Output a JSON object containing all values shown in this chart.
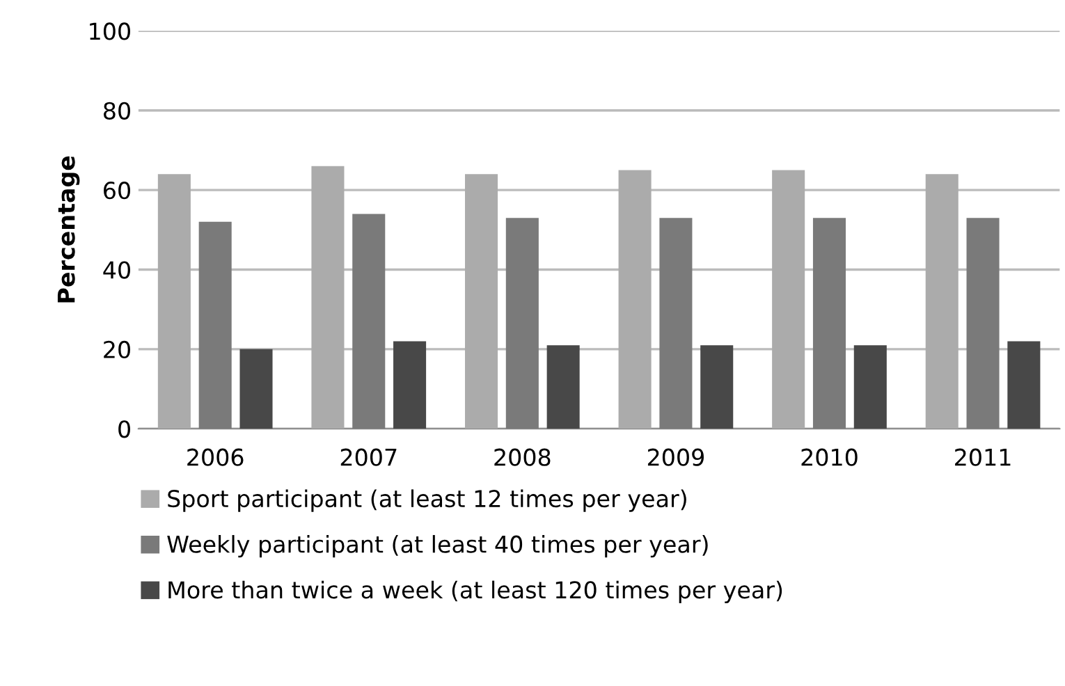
{
  "chart_data": {
    "type": "bar",
    "ylabel": "Percentage",
    "categories": [
      "2006",
      "2007",
      "2008",
      "2009",
      "2010",
      "2011"
    ],
    "series": [
      {
        "name": "Sport participant (at least 12 times per year)",
        "color": "#ababab",
        "values": [
          64,
          66,
          64,
          65,
          65,
          64
        ]
      },
      {
        "name": "Weekly participant (at least 40 times per year)",
        "color": "#7a7a7a",
        "values": [
          52,
          54,
          53,
          53,
          53,
          53
        ]
      },
      {
        "name": "More than twice a week (at least 120 times per year)",
        "color": "#484848",
        "values": [
          20,
          22,
          21,
          21,
          21,
          22
        ]
      }
    ],
    "ylim": [
      0,
      100
    ],
    "yticks": [
      0,
      20,
      40,
      60,
      80,
      100
    ],
    "grid": "y",
    "legend": "bottom left"
  }
}
